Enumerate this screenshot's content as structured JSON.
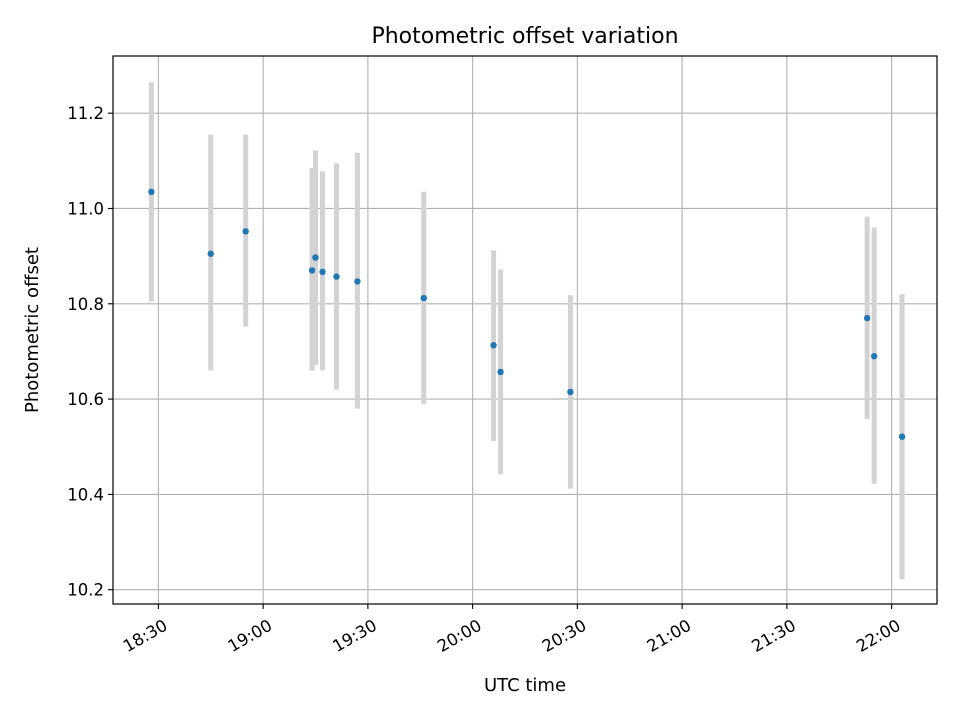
{
  "chart_data": {
    "type": "scatter",
    "title": "Photometric offset variation",
    "xlabel": "UTC time",
    "ylabel": "Photometric offset",
    "x_axis_type": "time",
    "xlim": [
      "18:17",
      "22:13"
    ],
    "ylim": [
      10.17,
      11.32
    ],
    "xticks": [
      "18:30",
      "19:00",
      "19:30",
      "20:00",
      "20:30",
      "21:00",
      "21:30",
      "22:00"
    ],
    "yticks": [
      "10.2",
      "10.4",
      "10.6",
      "10.8",
      "11.0",
      "11.2"
    ],
    "grid": true,
    "xtick_rotation": "30",
    "colors": {
      "point": "#1f77b4",
      "errorbar": "#d3d3d3",
      "grid": "#b0b0b0"
    },
    "points": [
      {
        "x": "18:28",
        "y": 11.035,
        "ymin": 10.805,
        "ymax": 11.265
      },
      {
        "x": "18:45",
        "y": 10.905,
        "ymin": 10.66,
        "ymax": 11.155
      },
      {
        "x": "18:55",
        "y": 10.952,
        "ymin": 10.752,
        "ymax": 11.155
      },
      {
        "x": "19:14",
        "y": 10.87,
        "ymin": 10.66,
        "ymax": 11.085
      },
      {
        "x": "19:15",
        "y": 10.897,
        "ymin": 10.672,
        "ymax": 11.122
      },
      {
        "x": "19:17",
        "y": 10.867,
        "ymin": 10.66,
        "ymax": 11.078
      },
      {
        "x": "19:21",
        "y": 10.857,
        "ymin": 10.62,
        "ymax": 11.095
      },
      {
        "x": "19:27",
        "y": 10.847,
        "ymin": 10.58,
        "ymax": 11.117
      },
      {
        "x": "19:46",
        "y": 10.812,
        "ymin": 10.59,
        "ymax": 11.035
      },
      {
        "x": "20:06",
        "y": 10.713,
        "ymin": 10.512,
        "ymax": 10.912
      },
      {
        "x": "20:08",
        "y": 10.657,
        "ymin": 10.442,
        "ymax": 10.872
      },
      {
        "x": "20:28",
        "y": 10.615,
        "ymin": 10.412,
        "ymax": 10.818
      },
      {
        "x": "21:53",
        "y": 10.77,
        "ymin": 10.558,
        "ymax": 10.983
      },
      {
        "x": "21:55",
        "y": 10.69,
        "ymin": 10.422,
        "ymax": 10.96
      },
      {
        "x": "22:03",
        "y": 10.521,
        "ymin": 10.222,
        "ymax": 10.82
      }
    ]
  }
}
